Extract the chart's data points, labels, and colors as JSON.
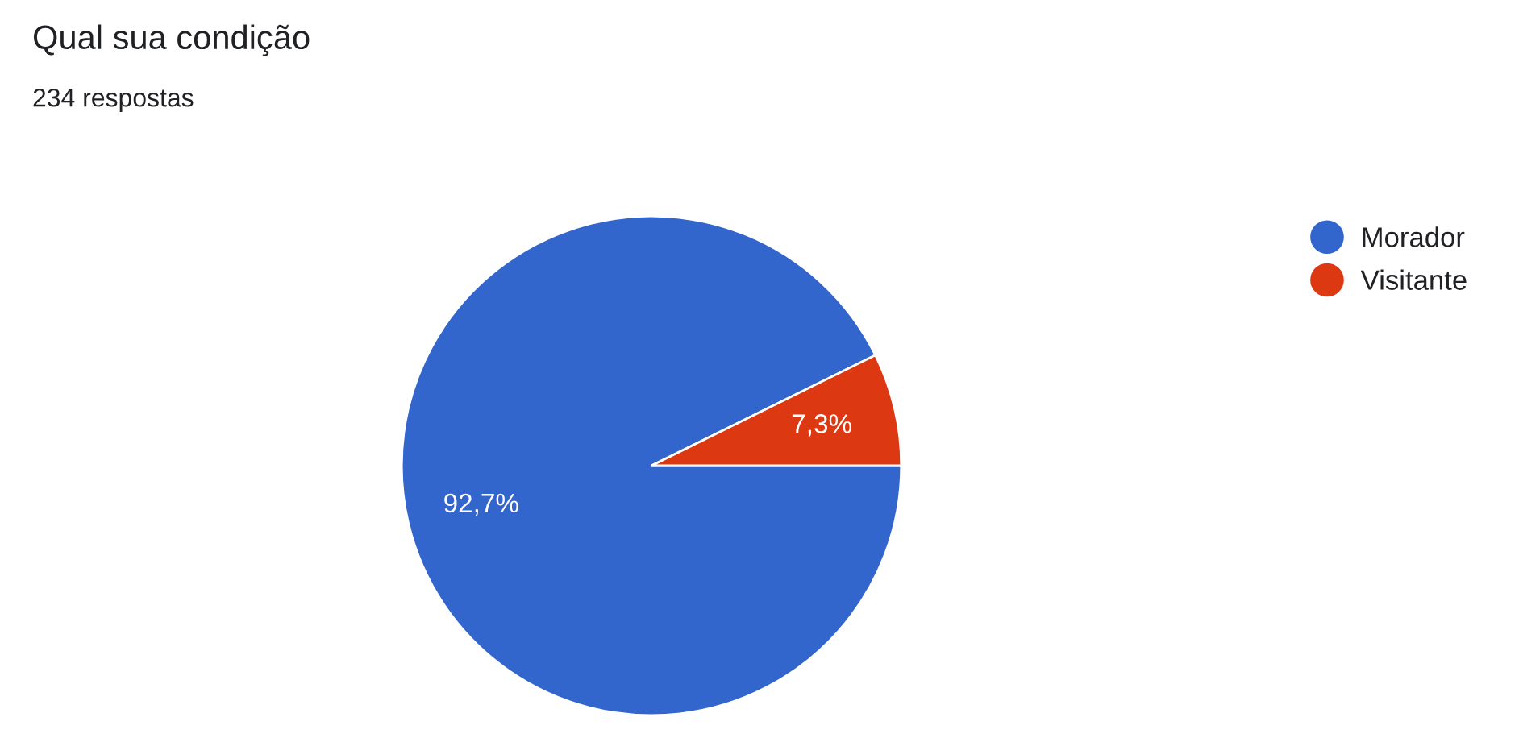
{
  "chart_data": {
    "type": "pie",
    "title": "Qual sua condição",
    "subtitle": "234 respostas",
    "categories": [
      "Morador",
      "Visitante"
    ],
    "values": [
      92.7,
      7.3
    ],
    "value_labels": [
      "92,7%",
      "7,3%"
    ],
    "colors": [
      "#3366cc",
      "#dc3912"
    ],
    "legend": "top right"
  }
}
